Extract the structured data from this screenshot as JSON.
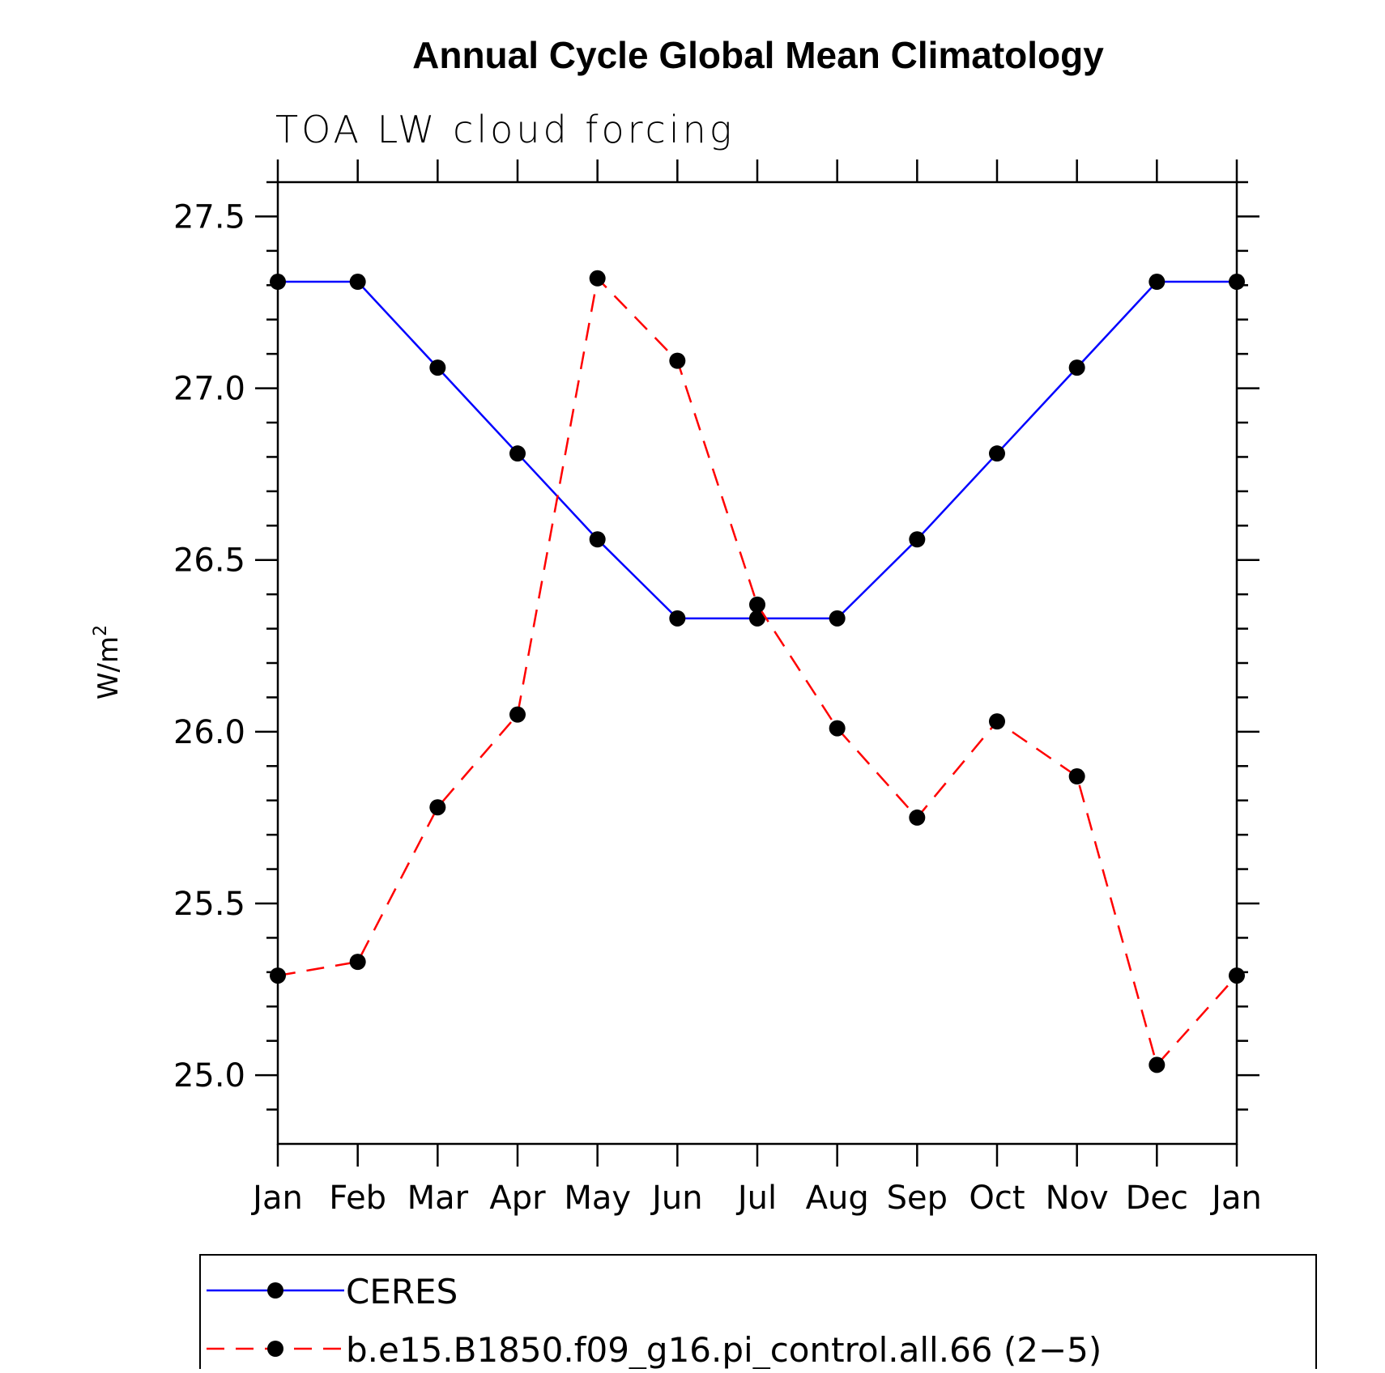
{
  "chart_data": {
    "type": "line",
    "title": "Annual Cycle Global Mean Climatology",
    "subtitle": "TOA LW cloud forcing",
    "ylabel": "W/m",
    "ylabel_superscript": "2",
    "xlabel": "",
    "categories": [
      "Jan",
      "Feb",
      "Mar",
      "Apr",
      "May",
      "Jun",
      "Jul",
      "Aug",
      "Sep",
      "Oct",
      "Nov",
      "Dec",
      "Jan"
    ],
    "ylim": [
      24.8,
      27.6
    ],
    "yticks": [
      25.0,
      25.5,
      26.0,
      26.5,
      27.0,
      27.5
    ],
    "ytick_labels": [
      "25.0",
      "25.5",
      "26.0",
      "26.5",
      "27.0",
      "27.5"
    ],
    "series": [
      {
        "name": "CERES",
        "color": "#0000ff",
        "dash": "solid",
        "marker": "filled-circle",
        "values": [
          27.31,
          27.31,
          27.06,
          26.81,
          26.56,
          26.33,
          26.33,
          26.33,
          26.56,
          26.81,
          27.06,
          27.31,
          27.31
        ]
      },
      {
        "name": "b.e15.B1850.f09_g16.pi_control.all.66 (2−5)",
        "color": "#ff0000",
        "dash": "dashed",
        "marker": "filled-circle",
        "values": [
          25.29,
          25.33,
          25.78,
          26.05,
          27.32,
          27.08,
          26.37,
          26.01,
          25.75,
          26.03,
          25.87,
          25.03,
          25.29
        ]
      }
    ],
    "legend": {
      "placement": "bottom"
    },
    "grid": false
  }
}
